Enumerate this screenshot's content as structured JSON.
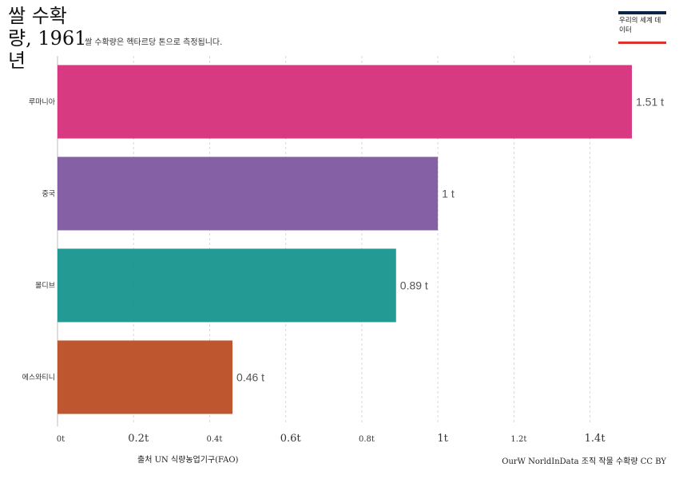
{
  "header": {
    "title": "쌀 수확량, 1961년",
    "subtitle": "쌀 수확량은 헥타르당 톤으로 측정됩니다.",
    "logo_text": "우리의 세계 데이터"
  },
  "footer": {
    "source": "출처 UN 식량농업기구(FAO)",
    "credit": "OurW NorldInData 조직 작물 수확량 CC BY"
  },
  "chart_data": {
    "type": "bar",
    "orientation": "horizontal",
    "categories": [
      "루마니아",
      "중국",
      "몰디브",
      "에스와티니"
    ],
    "values": [
      1.51,
      1.0,
      0.89,
      0.46
    ],
    "value_labels": [
      "1.51 t",
      "1 t",
      "0.89 t",
      "0.46 t"
    ],
    "colors": [
      "#d62f7a",
      "#7e57a0",
      "#17958d",
      "#bb4d24"
    ],
    "x_ticks": [
      0,
      0.2,
      0.4,
      0.6,
      0.8,
      1,
      1.2,
      1.4
    ],
    "x_tick_labels": [
      "0t",
      "0.2t",
      "0.4t",
      "0.6t",
      "0.8t",
      "1t",
      "1.2t",
      "1.4t"
    ],
    "xlim": [
      0,
      1.51
    ],
    "grid": "vertical dashed"
  }
}
